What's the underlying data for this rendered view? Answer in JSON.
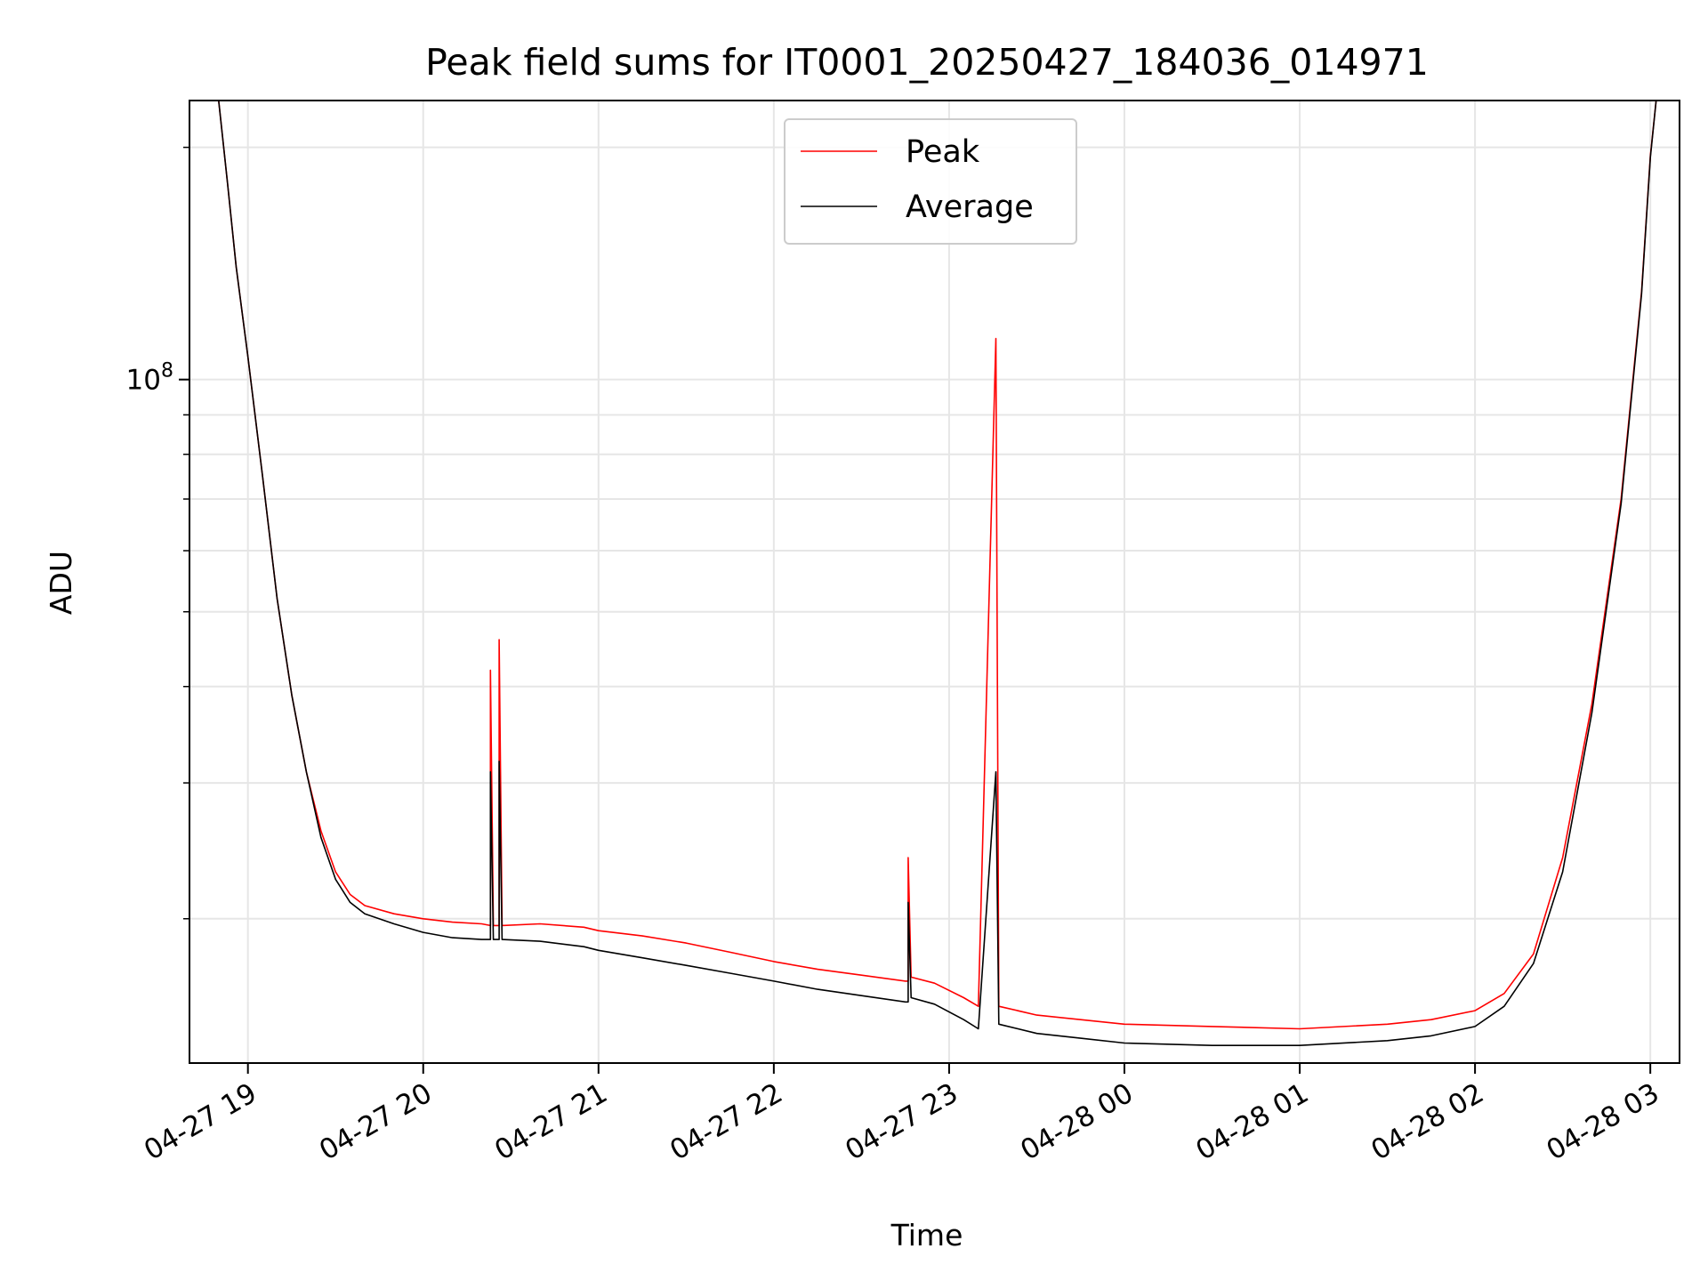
{
  "chart_data": {
    "type": "line",
    "title": "Peak field sums for IT0001_20250427_184036_014971",
    "xlabel": "Time",
    "ylabel": "ADU",
    "y_scale": "log",
    "xlim": [
      "2025-04-27 18:40",
      "2025-04-28 03:10"
    ],
    "ylim": [
      13000000,
      230000000
    ],
    "x_ticks": [
      {
        "value": "2025-04-27 19:00",
        "label": "04-27 19"
      },
      {
        "value": "2025-04-27 20:00",
        "label": "04-27 20"
      },
      {
        "value": "2025-04-27 21:00",
        "label": "04-27 21"
      },
      {
        "value": "2025-04-27 22:00",
        "label": "04-27 22"
      },
      {
        "value": "2025-04-27 23:00",
        "label": "04-27 23"
      },
      {
        "value": "2025-04-28 00:00",
        "label": "04-28 00"
      },
      {
        "value": "2025-04-28 01:00",
        "label": "04-28 01"
      },
      {
        "value": "2025-04-28 02:00",
        "label": "04-28 02"
      },
      {
        "value": "2025-04-28 03:00",
        "label": "04-28 03"
      }
    ],
    "y_major_ticks": [
      {
        "value": 100000000,
        "base": "10",
        "exponent": "8"
      }
    ],
    "y_minor_ticks": [
      20000000,
      30000000,
      40000000,
      50000000,
      60000000,
      70000000,
      80000000,
      90000000,
      200000000
    ],
    "grid": true,
    "legend": {
      "position": "top-center"
    },
    "series": [
      {
        "name": "Peak",
        "color": "#ff0000",
        "points": [
          [
            "2025-04-27 18:50",
            230000000
          ],
          [
            "2025-04-27 18:53",
            180000000
          ],
          [
            "2025-04-27 18:56",
            140000000
          ],
          [
            "2025-04-27 19:00",
            107000000
          ],
          [
            "2025-04-27 19:05",
            75000000
          ],
          [
            "2025-04-27 19:10",
            52000000
          ],
          [
            "2025-04-27 19:15",
            39000000
          ],
          [
            "2025-04-27 19:20",
            31000000
          ],
          [
            "2025-04-27 19:25",
            26000000
          ],
          [
            "2025-04-27 19:30",
            23000000
          ],
          [
            "2025-04-27 19:35",
            21500000
          ],
          [
            "2025-04-27 19:40",
            20800000
          ],
          [
            "2025-04-27 19:50",
            20300000
          ],
          [
            "2025-04-27 20:00",
            20000000
          ],
          [
            "2025-04-27 20:10",
            19800000
          ],
          [
            "2025-04-27 20:20",
            19700000
          ],
          [
            "2025-04-27 20:23",
            19600000
          ],
          [
            "2025-04-27 20:23",
            42000000
          ],
          [
            "2025-04-27 20:24",
            19600000
          ],
          [
            "2025-04-27 20:26",
            19600000
          ],
          [
            "2025-04-27 20:26",
            46000000
          ],
          [
            "2025-04-27 20:27",
            19600000
          ],
          [
            "2025-04-27 20:40",
            19700000
          ],
          [
            "2025-04-27 20:55",
            19500000
          ],
          [
            "2025-04-27 21:00",
            19300000
          ],
          [
            "2025-04-27 21:15",
            19000000
          ],
          [
            "2025-04-27 21:30",
            18600000
          ],
          [
            "2025-04-27 21:45",
            18100000
          ],
          [
            "2025-04-27 22:00",
            17600000
          ],
          [
            "2025-04-27 22:15",
            17200000
          ],
          [
            "2025-04-27 22:30",
            16900000
          ],
          [
            "2025-04-27 22:45",
            16600000
          ],
          [
            "2025-04-27 22:46",
            16600000
          ],
          [
            "2025-04-27 22:46",
            24000000
          ],
          [
            "2025-04-27 22:47",
            16800000
          ],
          [
            "2025-04-27 22:55",
            16500000
          ],
          [
            "2025-04-27 23:05",
            15800000
          ],
          [
            "2025-04-27 23:10",
            15400000
          ],
          [
            "2025-04-27 23:16",
            113000000
          ],
          [
            "2025-04-27 23:17",
            15400000
          ],
          [
            "2025-04-27 23:30",
            15000000
          ],
          [
            "2025-04-27 23:45",
            14800000
          ],
          [
            "2025-04-28 00:00",
            14600000
          ],
          [
            "2025-04-28 00:30",
            14500000
          ],
          [
            "2025-04-28 01:00",
            14400000
          ],
          [
            "2025-04-28 01:30",
            14600000
          ],
          [
            "2025-04-28 01:45",
            14800000
          ],
          [
            "2025-04-28 02:00",
            15200000
          ],
          [
            "2025-04-28 02:10",
            16000000
          ],
          [
            "2025-04-28 02:20",
            18000000
          ],
          [
            "2025-04-28 02:30",
            24000000
          ],
          [
            "2025-04-28 02:40",
            38000000
          ],
          [
            "2025-04-28 02:50",
            70000000
          ],
          [
            "2025-04-28 02:57",
            130000000
          ],
          [
            "2025-04-28 03:00",
            195000000
          ],
          [
            "2025-04-28 03:02",
            230000000
          ]
        ]
      },
      {
        "name": "Average",
        "color": "#000000",
        "points": [
          [
            "2025-04-27 18:50",
            230000000
          ],
          [
            "2025-04-27 18:53",
            180000000
          ],
          [
            "2025-04-27 18:56",
            140000000
          ],
          [
            "2025-04-27 19:00",
            107000000
          ],
          [
            "2025-04-27 19:05",
            75000000
          ],
          [
            "2025-04-27 19:10",
            52000000
          ],
          [
            "2025-04-27 19:15",
            39000000
          ],
          [
            "2025-04-27 19:20",
            31000000
          ],
          [
            "2025-04-27 19:25",
            25500000
          ],
          [
            "2025-04-27 19:30",
            22500000
          ],
          [
            "2025-04-27 19:35",
            21000000
          ],
          [
            "2025-04-27 19:40",
            20300000
          ],
          [
            "2025-04-27 19:50",
            19700000
          ],
          [
            "2025-04-27 20:00",
            19200000
          ],
          [
            "2025-04-27 20:10",
            18900000
          ],
          [
            "2025-04-27 20:20",
            18800000
          ],
          [
            "2025-04-27 20:23",
            18800000
          ],
          [
            "2025-04-27 20:23",
            31000000
          ],
          [
            "2025-04-27 20:24",
            18800000
          ],
          [
            "2025-04-27 20:26",
            18800000
          ],
          [
            "2025-04-27 20:26",
            32000000
          ],
          [
            "2025-04-27 20:27",
            18800000
          ],
          [
            "2025-04-27 20:40",
            18700000
          ],
          [
            "2025-04-27 20:55",
            18400000
          ],
          [
            "2025-04-27 21:00",
            18200000
          ],
          [
            "2025-04-27 21:15",
            17800000
          ],
          [
            "2025-04-27 21:30",
            17400000
          ],
          [
            "2025-04-27 21:45",
            17000000
          ],
          [
            "2025-04-27 22:00",
            16600000
          ],
          [
            "2025-04-27 22:15",
            16200000
          ],
          [
            "2025-04-27 22:30",
            15900000
          ],
          [
            "2025-04-27 22:45",
            15600000
          ],
          [
            "2025-04-27 22:46",
            15600000
          ],
          [
            "2025-04-27 22:46",
            21000000
          ],
          [
            "2025-04-27 22:47",
            15800000
          ],
          [
            "2025-04-27 22:55",
            15500000
          ],
          [
            "2025-04-27 23:05",
            14800000
          ],
          [
            "2025-04-27 23:10",
            14400000
          ],
          [
            "2025-04-27 23:16",
            31000000
          ],
          [
            "2025-04-27 23:17",
            14600000
          ],
          [
            "2025-04-27 23:30",
            14200000
          ],
          [
            "2025-04-27 23:45",
            14000000
          ],
          [
            "2025-04-28 00:00",
            13800000
          ],
          [
            "2025-04-28 00:30",
            13700000
          ],
          [
            "2025-04-28 01:00",
            13700000
          ],
          [
            "2025-04-28 01:30",
            13900000
          ],
          [
            "2025-04-28 01:45",
            14100000
          ],
          [
            "2025-04-28 02:00",
            14500000
          ],
          [
            "2025-04-28 02:10",
            15400000
          ],
          [
            "2025-04-28 02:20",
            17500000
          ],
          [
            "2025-04-28 02:30",
            23000000
          ],
          [
            "2025-04-28 02:40",
            37000000
          ],
          [
            "2025-04-28 02:50",
            69000000
          ],
          [
            "2025-04-28 02:57",
            129000000
          ],
          [
            "2025-04-28 03:00",
            194000000
          ],
          [
            "2025-04-28 03:02",
            230000000
          ]
        ]
      }
    ]
  }
}
